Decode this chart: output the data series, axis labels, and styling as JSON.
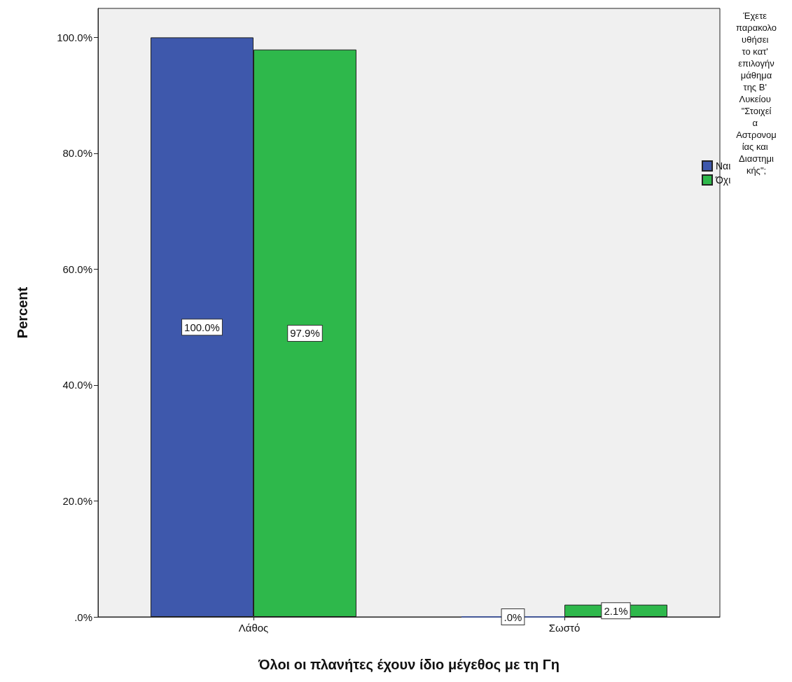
{
  "chart_data": {
    "type": "bar",
    "xlabel": "Όλοι οι πλανήτες έχουν ίδιο μέγεθος με τη Γη",
    "ylabel": "Percent",
    "legend_title": "Έχετε παρακολουθήσει το κατ' επιλογήν μάθημα της Β' Λυκείου \"Στοιχεία Αστρονομίας και Διαστημικής\";",
    "categories": [
      "Λάθος",
      "Σωστό"
    ],
    "series": [
      {
        "name": "Ναι",
        "color": "#3e58ac",
        "values": [
          100.0,
          0.0
        ],
        "value_labels": [
          "100.0%",
          ".0%"
        ]
      },
      {
        "name": "Όχι",
        "color": "#2eb84b",
        "values": [
          97.9,
          2.1
        ],
        "value_labels": [
          "97.9%",
          "2.1%"
        ]
      }
    ],
    "ylim": [
      0,
      105
    ],
    "yticks": [
      {
        "value": 0,
        "label": ".0%"
      },
      {
        "value": 20,
        "label": "20.0%"
      },
      {
        "value": 40,
        "label": "40.0%"
      },
      {
        "value": 60,
        "label": "60.0%"
      },
      {
        "value": 80,
        "label": "80.0%"
      },
      {
        "value": 100,
        "label": "100.0%"
      }
    ],
    "grid": false,
    "legend": "right"
  }
}
